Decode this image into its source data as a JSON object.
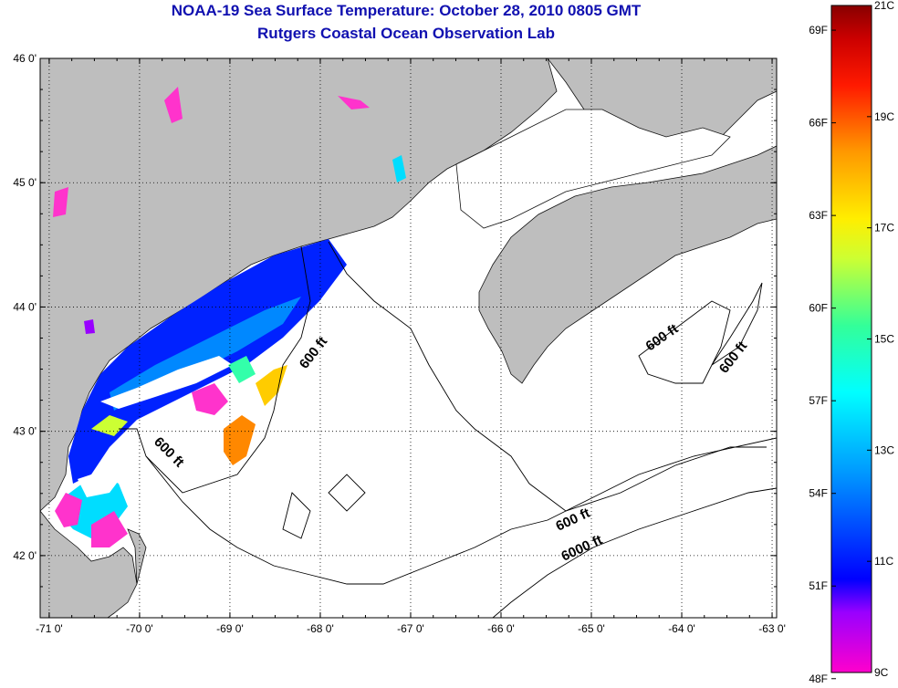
{
  "title": "NOAA-19 Sea Surface Temperature:  October 28, 2010 0805 GMT",
  "subtitle": "Rutgers Coastal Ocean Observation Lab",
  "map": {
    "lon_range": [
      -71.1,
      -62.95
    ],
    "lat_range": [
      41.5,
      46.0
    ],
    "lon_ticks": [
      -71,
      -70,
      -69,
      -68,
      -67,
      -66,
      -65,
      -64,
      -63
    ],
    "lat_ticks": [
      42,
      43,
      44,
      45,
      46
    ],
    "lon_tick_labels": [
      "-71 0'",
      "-70 0'",
      "-69 0'",
      "-68 0'",
      "-67 0'",
      "-66 0'",
      "-65 0'",
      "-64 0'",
      "-63 0'"
    ],
    "lat_tick_labels": [
      "42 0'",
      "43 0'",
      "44 0'",
      "45 0'",
      "46 0'"
    ],
    "grid": "dotted",
    "land_color": "#bebebe",
    "contour_labels": [
      "600 ft",
      "600 ft",
      "600 ft",
      "600 ft",
      "600 ft",
      "6000 ft"
    ]
  },
  "colorbar": {
    "range_c": [
      9,
      21
    ],
    "fahrenheit_labels": [
      "69F",
      "66F",
      "63F",
      "60F",
      "57F",
      "54F",
      "51F",
      "48F"
    ],
    "celsius_labels": [
      "21C",
      "19C",
      "17C",
      "15C",
      "13C",
      "11C",
      "9C"
    ],
    "colors": [
      "#ff00cc",
      "#9900ff",
      "#0000ff",
      "#0099ff",
      "#00ffff",
      "#33ff99",
      "#ccff33",
      "#ffee00",
      "#ff9900",
      "#ff3300",
      "#cc0000",
      "#880000"
    ]
  }
}
